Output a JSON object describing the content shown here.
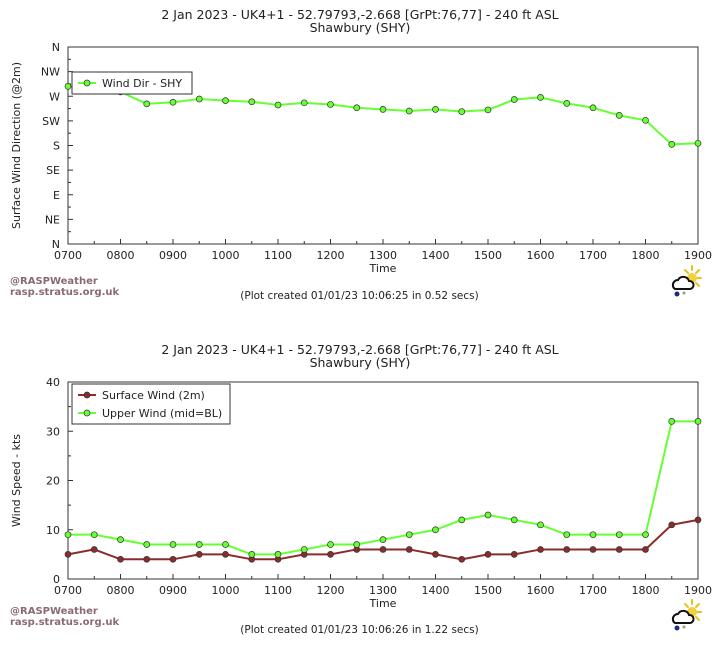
{
  "credits": {
    "line1": "@RASPWeather",
    "line2": "rasp.stratus.org.uk"
  },
  "logo_icon": "weather-cloud-sun-rain-icon",
  "colors": {
    "green": "#66ff33",
    "maroon": "#8b2c2c",
    "axis": "#333333"
  },
  "chart_data": [
    {
      "type": "line",
      "title": "2 Jan 2023 - UK4+1 - 52.79793,-2.668 [GrPt:76,77]  - 240 ft ASL",
      "subtitle": "Shawbury (SHY)",
      "xlabel": "Time",
      "ylabel": "Surface Wind Direction (@2m)",
      "x_ticks": [
        "0700",
        "0800",
        "0900",
        "1000",
        "1100",
        "1200",
        "1300",
        "1400",
        "1500",
        "1600",
        "1700",
        "1800",
        "1900"
      ],
      "xlim": [
        700,
        1900
      ],
      "ylim": [
        0,
        360
      ],
      "y_ticks": [
        {
          "value": 360,
          "label": "N"
        },
        {
          "value": 315,
          "label": "NW"
        },
        {
          "value": 270,
          "label": "W"
        },
        {
          "value": 225,
          "label": "SW"
        },
        {
          "value": 180,
          "label": "S"
        },
        {
          "value": 135,
          "label": "SE"
        },
        {
          "value": 90,
          "label": "E"
        },
        {
          "value": 45,
          "label": "NE"
        },
        {
          "value": 0,
          "label": "N"
        }
      ],
      "legend_position": "top-left",
      "series": [
        {
          "name": "Wind Dir - SHY",
          "color": "#66ff33",
          "x": [
            700,
            800,
            850,
            900,
            950,
            1000,
            1050,
            1100,
            1150,
            1200,
            1250,
            1300,
            1350,
            1400,
            1450,
            1500,
            1550,
            1600,
            1650,
            1700,
            1750,
            1800,
            1850,
            1900
          ],
          "values": [
            288,
            278,
            256,
            259,
            265,
            262,
            260,
            254,
            258,
            255,
            249,
            246,
            243,
            246,
            242,
            245,
            264,
            268,
            257,
            249,
            235,
            226,
            182,
            184
          ]
        }
      ],
      "created": "(Plot created 01/01/23 10:06:25 in 0.52 secs)"
    },
    {
      "type": "line",
      "title": "2 Jan 2023 - UK4+1 - 52.79793,-2.668 [GrPt:76,77]  - 240 ft ASL",
      "subtitle": "Shawbury (SHY)",
      "xlabel": "Time",
      "ylabel": "Wind Speed - kts",
      "x_ticks": [
        "0700",
        "0800",
        "0900",
        "1000",
        "1100",
        "1200",
        "1300",
        "1400",
        "1500",
        "1600",
        "1700",
        "1800",
        "1900"
      ],
      "xlim": [
        700,
        1900
      ],
      "ylim": [
        0,
        40
      ],
      "y_ticks": [
        {
          "value": 40,
          "label": "40"
        },
        {
          "value": 30,
          "label": "30"
        },
        {
          "value": 20,
          "label": "20"
        },
        {
          "value": 10,
          "label": "10"
        },
        {
          "value": 0,
          "label": "0"
        }
      ],
      "legend_position": "top-left",
      "series": [
        {
          "name": "Surface Wind (2m)",
          "color": "#8b2c2c",
          "x": [
            700,
            750,
            800,
            850,
            900,
            950,
            1000,
            1050,
            1100,
            1150,
            1200,
            1250,
            1300,
            1350,
            1400,
            1450,
            1500,
            1550,
            1600,
            1650,
            1700,
            1750,
            1800,
            1850,
            1900
          ],
          "values": [
            5,
            6,
            4,
            4,
            4,
            5,
            5,
            4,
            4,
            5,
            5,
            6,
            6,
            6,
            5,
            4,
            5,
            5,
            6,
            6,
            6,
            6,
            6,
            11,
            12
          ]
        },
        {
          "name": "Upper Wind (mid=BL)",
          "color": "#66ff33",
          "x": [
            700,
            750,
            800,
            850,
            900,
            950,
            1000,
            1050,
            1100,
            1150,
            1200,
            1250,
            1300,
            1350,
            1400,
            1450,
            1500,
            1550,
            1600,
            1650,
            1700,
            1750,
            1800,
            1850,
            1900
          ],
          "values": [
            9,
            9,
            8,
            7,
            7,
            7,
            7,
            5,
            5,
            6,
            7,
            7,
            8,
            9,
            10,
            12,
            13,
            12,
            11,
            9,
            9,
            9,
            9,
            32,
            32
          ]
        }
      ],
      "created": "(Plot created 01/01/23 10:06:26 in 1.22 secs)"
    }
  ]
}
